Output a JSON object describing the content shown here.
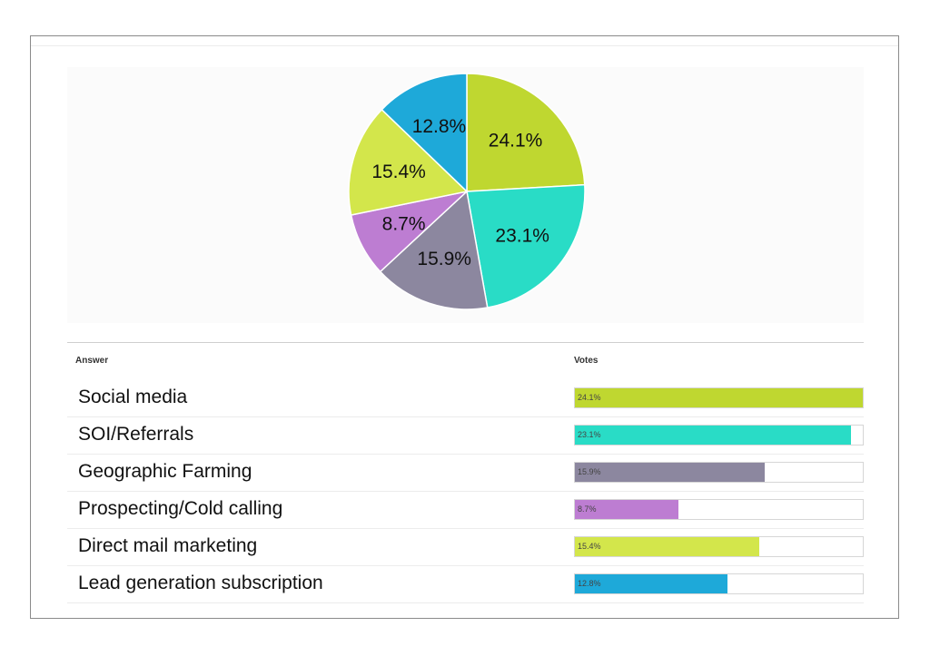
{
  "chart_data": {
    "type": "pie",
    "slices": [
      {
        "label": "Social media",
        "value": 24.1,
        "pct_label": "24.1%",
        "color": "#bfd730"
      },
      {
        "label": "SOI/Referrals",
        "value": 23.1,
        "pct_label": "23.1%",
        "color": "#29dcc6"
      },
      {
        "label": "Geographic Farming",
        "value": 15.9,
        "pct_label": "15.9%",
        "color": "#8c879f"
      },
      {
        "label": "Prospecting/Cold calling",
        "value": 8.7,
        "pct_label": "8.7%",
        "color": "#bd7dd2"
      },
      {
        "label": "Direct mail marketing",
        "value": 15.4,
        "pct_label": "15.4%",
        "color": "#d3e64b"
      },
      {
        "label": "Lead generation subscription",
        "value": 12.8,
        "pct_label": "12.8%",
        "color": "#1ea9d9"
      }
    ],
    "bar_max": 24.1
  },
  "table": {
    "answer_header": "Answer",
    "votes_header": "Votes"
  }
}
